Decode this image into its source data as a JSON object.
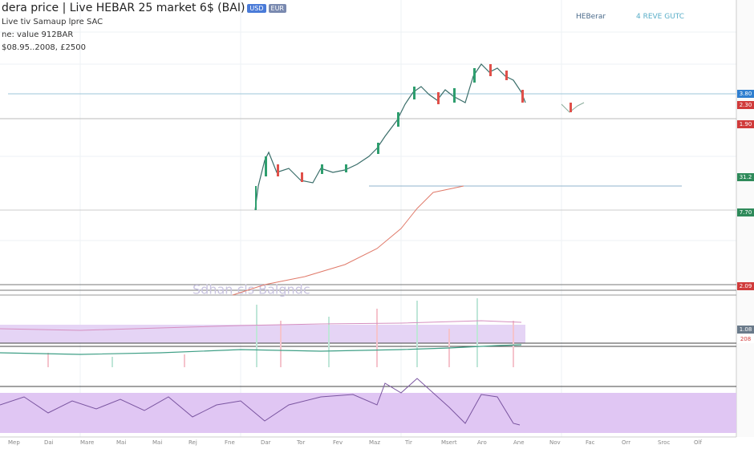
{
  "header": {
    "title": "dera price | Live HEBAR 25 market 6$ (BAI)",
    "badges": [
      "USD",
      "EUR"
    ],
    "lines": [
      "Live tiv Samaup lpre SAC",
      "ne: value 912BAR",
      "$08.95..2008, £2500"
    ]
  },
  "top_right": {
    "brand": "HEBerar",
    "status": "4 REVE GUTC"
  },
  "price_tags": [
    "3.80",
    "2.30",
    "1.90",
    "31.2",
    "7.70",
    "2.09",
    "1.08",
    "208"
  ],
  "watermark": "Sdhan  cls   Balgndc",
  "x_labels": [
    "Mep",
    "Dai",
    "Mare",
    "Mai",
    "Mai",
    "Rej",
    "Fne",
    "Dar",
    "Tor",
    "Fev",
    "Maz",
    "Tir",
    "Msert",
    "Aro",
    "Ane",
    "Nov",
    "Fac",
    "Orr",
    "Sroc",
    "Olf"
  ]
}
